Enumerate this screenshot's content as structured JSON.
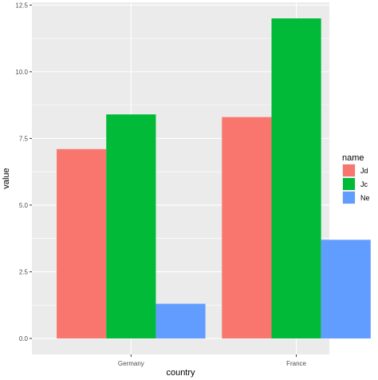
{
  "chart_data": {
    "type": "bar",
    "categories": [
      "Germany",
      "France"
    ],
    "series": [
      {
        "name": "Jd",
        "values": [
          7.1,
          8.3
        ],
        "color": "#F8766D"
      },
      {
        "name": "Jc",
        "values": [
          8.4,
          12.0
        ],
        "color": "#00BA38"
      },
      {
        "name": "Ne",
        "values": [
          1.3,
          3.7
        ],
        "color": "#619CFF"
      }
    ],
    "xlabel": "country",
    "ylabel": "value",
    "ylim": [
      -0.6,
      12.6
    ],
    "yticks": [
      0,
      2.5,
      5,
      7.5,
      10,
      12.5
    ],
    "ytick_labels": [
      "0.0",
      "2.5",
      "5.0",
      "7.5",
      "10.0",
      "12.5"
    ],
    "legend_title": "name",
    "legend_position": "right",
    "grid": true,
    "panel_background": "#EBEBEB"
  }
}
